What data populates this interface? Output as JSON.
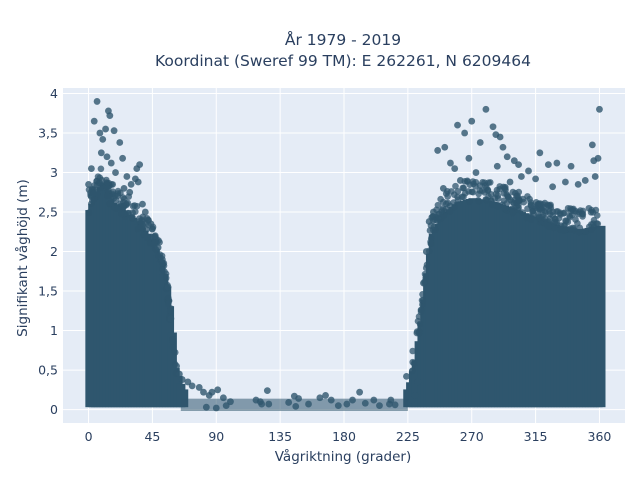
{
  "chart_data": {
    "type": "scatter",
    "title_line1": "År 1979 - 2019",
    "title_line2": "Koordinat (Sweref 99 TM): E 262261, N 6209464",
    "xlabel": "Vågriktning (grader)",
    "ylabel": "Signifikant våghöjd (m)",
    "xlim": [
      -18,
      378
    ],
    "ylim": [
      -0.17,
      4.07
    ],
    "x_ticks": [
      0,
      45,
      90,
      135,
      180,
      225,
      270,
      315,
      360
    ],
    "x_tick_labels": [
      "0",
      "45",
      "90",
      "135",
      "180",
      "225",
      "270",
      "315",
      "360"
    ],
    "y_ticks": [
      0,
      0.5,
      1,
      1.5,
      2,
      2.5,
      3,
      3.5,
      4
    ],
    "y_tick_labels": [
      "0",
      "0,5",
      "1",
      "1,5",
      "2",
      "2,5",
      "3",
      "3,5",
      "4"
    ],
    "grid": true,
    "legend": "none",
    "marker_color": "#2f566e",
    "plot_bgcolor": "#e5ecf6",
    "envelope": [
      {
        "x": 0,
        "ymax": 2.5
      },
      {
        "x": 5,
        "ymax": 2.7
      },
      {
        "x": 10,
        "ymax": 2.85
      },
      {
        "x": 15,
        "ymax": 2.6
      },
      {
        "x": 20,
        "ymax": 2.55
      },
      {
        "x": 25,
        "ymax": 2.45
      },
      {
        "x": 30,
        "ymax": 2.4
      },
      {
        "x": 35,
        "ymax": 2.3
      },
      {
        "x": 40,
        "ymax": 2.2
      },
      {
        "x": 45,
        "ymax": 2.05
      },
      {
        "x": 50,
        "ymax": 1.85
      },
      {
        "x": 55,
        "ymax": 1.45
      },
      {
        "x": 58,
        "ymax": 0.95
      },
      {
        "x": 60,
        "ymax": 0.5
      },
      {
        "x": 65,
        "ymax": 0.25
      },
      {
        "x": 70,
        "ymax": 0.15
      },
      {
        "x": 220,
        "ymax": 0.15
      },
      {
        "x": 225,
        "ymax": 0.25
      },
      {
        "x": 230,
        "ymax": 0.6
      },
      {
        "x": 235,
        "ymax": 1.2
      },
      {
        "x": 238,
        "ymax": 1.7
      },
      {
        "x": 242,
        "ymax": 2.2
      },
      {
        "x": 250,
        "ymax": 2.45
      },
      {
        "x": 260,
        "ymax": 2.6
      },
      {
        "x": 270,
        "ymax": 2.65
      },
      {
        "x": 285,
        "ymax": 2.6
      },
      {
        "x": 300,
        "ymax": 2.5
      },
      {
        "x": 315,
        "ymax": 2.4
      },
      {
        "x": 330,
        "ymax": 2.3
      },
      {
        "x": 345,
        "ymax": 2.25
      },
      {
        "x": 360,
        "ymax": 2.3
      }
    ],
    "outlier_points": [
      {
        "x": 6,
        "y": 3.9
      },
      {
        "x": 14,
        "y": 3.78
      },
      {
        "x": 15,
        "y": 3.72
      },
      {
        "x": 4,
        "y": 3.65
      },
      {
        "x": 12,
        "y": 3.55
      },
      {
        "x": 18,
        "y": 3.53
      },
      {
        "x": 8,
        "y": 3.5
      },
      {
        "x": 10,
        "y": 3.42
      },
      {
        "x": 22,
        "y": 3.38
      },
      {
        "x": 9,
        "y": 3.25
      },
      {
        "x": 13,
        "y": 3.2
      },
      {
        "x": 24,
        "y": 3.18
      },
      {
        "x": 16,
        "y": 3.12
      },
      {
        "x": 2,
        "y": 3.05
      },
      {
        "x": 19,
        "y": 3.0
      },
      {
        "x": 27,
        "y": 2.95
      },
      {
        "x": 33,
        "y": 2.92
      },
      {
        "x": 35,
        "y": 2.88
      },
      {
        "x": 30,
        "y": 2.85
      },
      {
        "x": 36,
        "y": 3.1
      },
      {
        "x": 34,
        "y": 3.05
      },
      {
        "x": 25,
        "y": 2.8
      },
      {
        "x": 0,
        "y": 2.85
      },
      {
        "x": 29,
        "y": 2.75
      },
      {
        "x": 38,
        "y": 2.6
      },
      {
        "x": 40,
        "y": 2.5
      },
      {
        "x": 42,
        "y": 2.4
      },
      {
        "x": 44,
        "y": 2.35
      },
      {
        "x": 47,
        "y": 2.2
      },
      {
        "x": 49,
        "y": 2.05
      },
      {
        "x": 52,
        "y": 1.9
      },
      {
        "x": 56,
        "y": 1.55
      },
      {
        "x": 58,
        "y": 1.15
      },
      {
        "x": 62,
        "y": 0.55
      },
      {
        "x": 64,
        "y": 0.45
      },
      {
        "x": 66,
        "y": 0.38
      },
      {
        "x": 70,
        "y": 0.35
      },
      {
        "x": 73,
        "y": 0.3
      },
      {
        "x": 78,
        "y": 0.28
      },
      {
        "x": 81,
        "y": 0.22
      },
      {
        "x": 85,
        "y": 0.18
      },
      {
        "x": 87,
        "y": 0.22
      },
      {
        "x": 91,
        "y": 0.25
      },
      {
        "x": 95,
        "y": 0.15
      },
      {
        "x": 100,
        "y": 0.1
      },
      {
        "x": 97,
        "y": 0.05
      },
      {
        "x": 83,
        "y": 0.03
      },
      {
        "x": 90,
        "y": 0.02
      },
      {
        "x": 118,
        "y": 0.12
      },
      {
        "x": 121,
        "y": 0.1
      },
      {
        "x": 127,
        "y": 0.07
      },
      {
        "x": 126,
        "y": 0.24
      },
      {
        "x": 122,
        "y": 0.07
      },
      {
        "x": 141,
        "y": 0.09
      },
      {
        "x": 145,
        "y": 0.17
      },
      {
        "x": 148,
        "y": 0.14
      },
      {
        "x": 146,
        "y": 0.04
      },
      {
        "x": 155,
        "y": 0.07
      },
      {
        "x": 163,
        "y": 0.15
      },
      {
        "x": 167,
        "y": 0.18
      },
      {
        "x": 171,
        "y": 0.12
      },
      {
        "x": 176,
        "y": 0.05
      },
      {
        "x": 182,
        "y": 0.07
      },
      {
        "x": 186,
        "y": 0.12
      },
      {
        "x": 191,
        "y": 0.22
      },
      {
        "x": 195,
        "y": 0.08
      },
      {
        "x": 201,
        "y": 0.12
      },
      {
        "x": 205,
        "y": 0.05
      },
      {
        "x": 212,
        "y": 0.07
      },
      {
        "x": 213,
        "y": 0.12
      },
      {
        "x": 216,
        "y": 0.06
      },
      {
        "x": 224,
        "y": 0.42
      },
      {
        "x": 228,
        "y": 0.12
      },
      {
        "x": 230,
        "y": 0.18
      },
      {
        "x": 232,
        "y": 0.35
      },
      {
        "x": 246,
        "y": 3.28
      },
      {
        "x": 251,
        "y": 3.32
      },
      {
        "x": 255,
        "y": 3.12
      },
      {
        "x": 258,
        "y": 3.05
      },
      {
        "x": 260,
        "y": 3.6
      },
      {
        "x": 270,
        "y": 3.65
      },
      {
        "x": 265,
        "y": 3.5
      },
      {
        "x": 268,
        "y": 3.18
      },
      {
        "x": 276,
        "y": 3.38
      },
      {
        "x": 280,
        "y": 3.8
      },
      {
        "x": 285,
        "y": 3.58
      },
      {
        "x": 287,
        "y": 3.48
      },
      {
        "x": 290,
        "y": 3.45
      },
      {
        "x": 292,
        "y": 3.32
      },
      {
        "x": 288,
        "y": 3.08
      },
      {
        "x": 295,
        "y": 3.2
      },
      {
        "x": 300,
        "y": 3.15
      },
      {
        "x": 303,
        "y": 3.1
      },
      {
        "x": 305,
        "y": 2.95
      },
      {
        "x": 310,
        "y": 3.02
      },
      {
        "x": 315,
        "y": 2.92
      },
      {
        "x": 318,
        "y": 3.25
      },
      {
        "x": 324,
        "y": 3.1
      },
      {
        "x": 330,
        "y": 3.12
      },
      {
        "x": 336,
        "y": 2.88
      },
      {
        "x": 345,
        "y": 2.85
      },
      {
        "x": 350,
        "y": 2.9
      },
      {
        "x": 355,
        "y": 3.35
      },
      {
        "x": 356,
        "y": 3.15
      },
      {
        "x": 359,
        "y": 3.18
      },
      {
        "x": 360,
        "y": 3.8
      },
      {
        "x": 357,
        "y": 2.95
      },
      {
        "x": 340,
        "y": 3.08
      },
      {
        "x": 327,
        "y": 2.82
      },
      {
        "x": 262,
        "y": 2.9
      },
      {
        "x": 273,
        "y": 3.0
      },
      {
        "x": 297,
        "y": 2.88
      },
      {
        "x": 250,
        "y": 2.8
      },
      {
        "x": 243,
        "y": 2.5
      },
      {
        "x": 240,
        "y": 2.38
      },
      {
        "x": 238,
        "y": 2.0
      },
      {
        "x": 236,
        "y": 1.6
      }
    ]
  }
}
